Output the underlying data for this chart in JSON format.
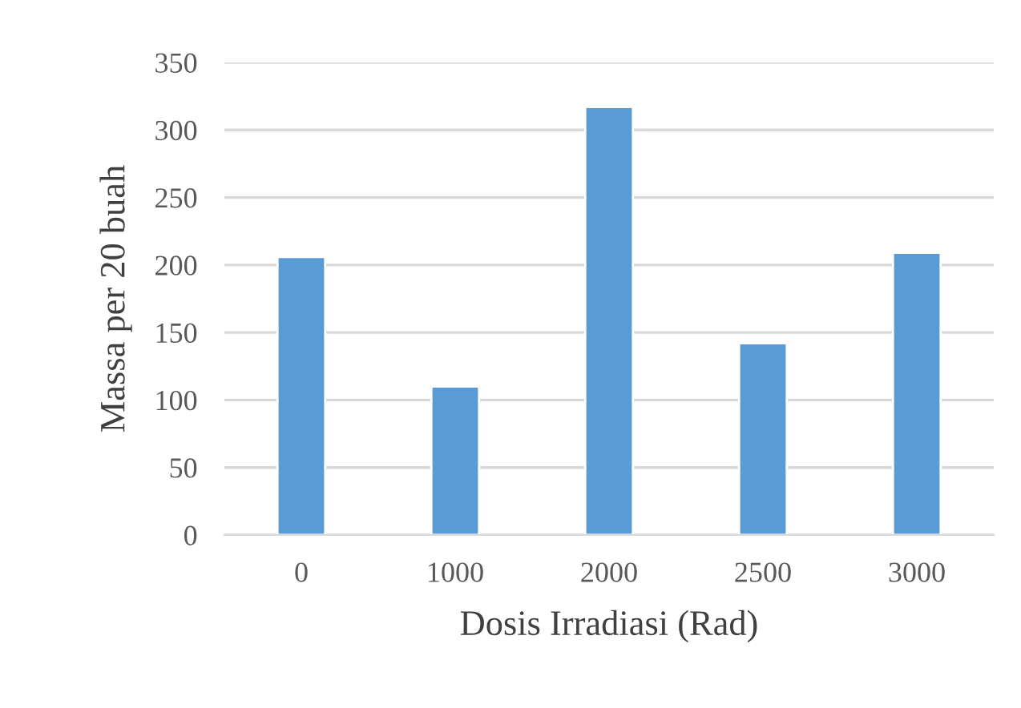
{
  "chart_data": {
    "type": "bar",
    "xlabel": "Dosis Irradiasi (Rad)",
    "ylabel": "Massa per 20 buah",
    "categories": [
      "0",
      "1000",
      "2000",
      "2500",
      "3000"
    ],
    "values": [
      206,
      110,
      317,
      142,
      209
    ],
    "color": "#5b9bd5",
    "ylim": [
      0,
      350
    ],
    "yticks": [
      0,
      50,
      100,
      150,
      200,
      250,
      300,
      350
    ],
    "grid": "y",
    "legend": false
  }
}
